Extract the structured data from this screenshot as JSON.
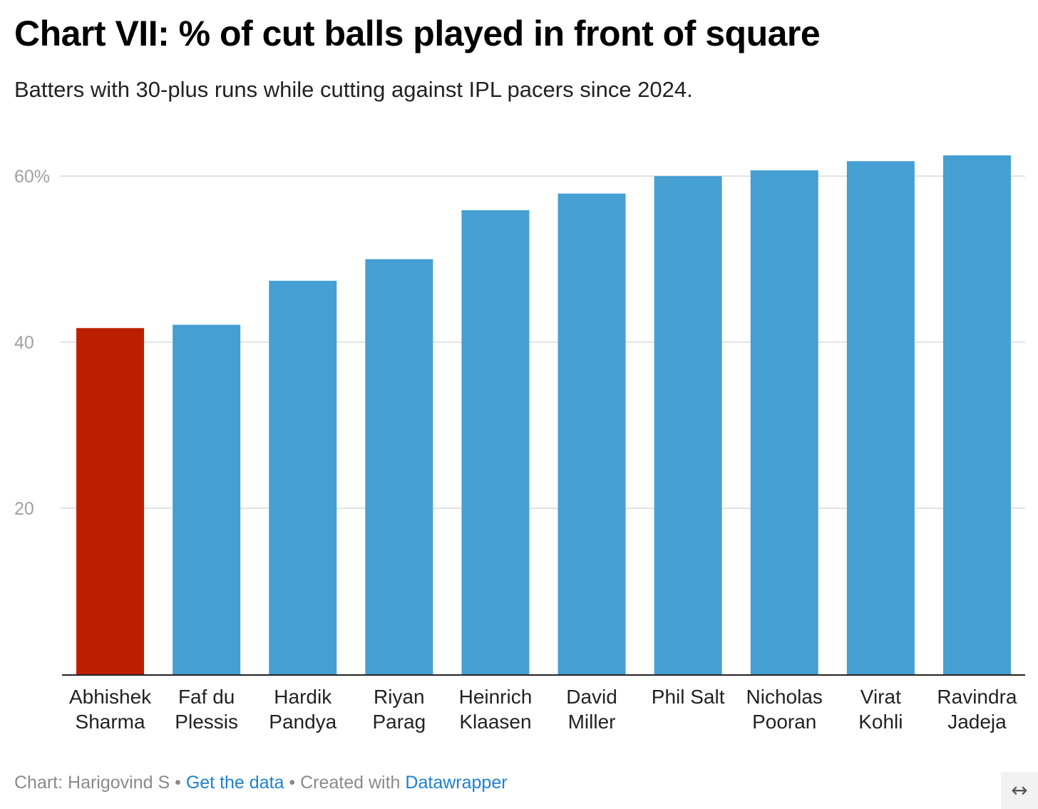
{
  "chart_data": {
    "type": "bar",
    "title": "Chart VII: % of cut balls played in front of square",
    "subtitle": "Batters with 30-plus runs while cutting against IPL pacers since 2024.",
    "xlabel": "",
    "ylabel": "",
    "ylim": [
      0,
      62.5
    ],
    "yticks": [
      20,
      40,
      60
    ],
    "ytick_labels": [
      "20",
      "40",
      "60%"
    ],
    "grid": true,
    "categories": [
      [
        "Abhishek",
        "Sharma"
      ],
      [
        "Faf du",
        "Plessis"
      ],
      [
        "Hardik",
        "Pandya"
      ],
      [
        "Riyan",
        "Parag"
      ],
      [
        "Heinrich",
        "Klaasen"
      ],
      [
        "David",
        "Miller"
      ],
      [
        "Phil Salt"
      ],
      [
        "Nicholas",
        "Pooran"
      ],
      [
        "Virat",
        "Kohli"
      ],
      [
        "Ravindra",
        "Jadeja"
      ]
    ],
    "values": [
      41.7,
      42.1,
      47.4,
      50.0,
      55.9,
      57.9,
      60.0,
      60.7,
      61.8,
      62.5
    ],
    "highlight_index": 0,
    "colors": {
      "bar": "#459fd3",
      "highlight": "#bb1f00",
      "grid": "#e2e2e2",
      "axis": "#222222",
      "tick_text": "#a0a0a0",
      "category_text": "#222222"
    }
  },
  "footer": {
    "credit": "Chart: Harigovind S",
    "separator": "•",
    "data_link": "Get the data",
    "created_with": "Created with",
    "tool_link": "Datawrapper"
  },
  "expand_icon": "↔"
}
